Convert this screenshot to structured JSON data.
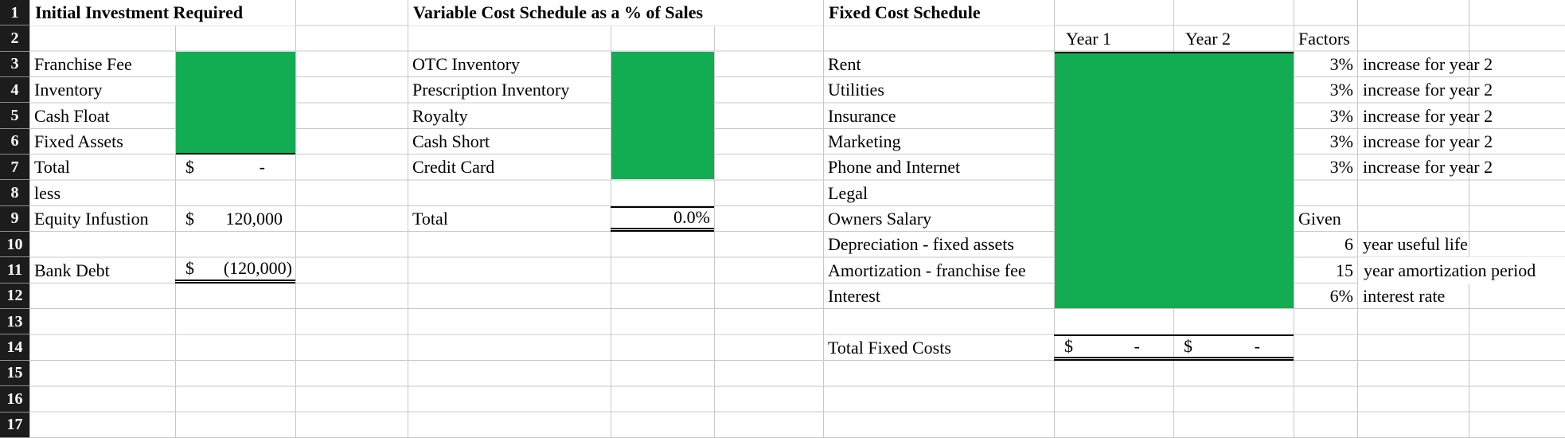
{
  "colors": {
    "fill-green": "#12AC52",
    "row-header-bg": "#1C1C1C",
    "gridline": "#C8C8C8",
    "border-black": "#000000"
  },
  "row_numbers": [
    "1",
    "2",
    "3",
    "4",
    "5",
    "6",
    "7",
    "8",
    "9",
    "10",
    "11",
    "12",
    "13",
    "14",
    "15",
    "16",
    "17"
  ],
  "initial_investment": {
    "title": "Initial Investment Required",
    "labels": {
      "franchise_fee": "Franchise Fee",
      "inventory": "Inventory",
      "cash_float": "Cash Float",
      "fixed_assets": "Fixed Assets",
      "total": "Total",
      "less": "less",
      "equity_infusion": "Equity Infustion",
      "bank_debt": "Bank Debt"
    },
    "values": {
      "total_currency": "$",
      "total_amount": "-",
      "equity_currency": "$",
      "equity_amount": "120,000",
      "bank_debt_currency": "$",
      "bank_debt_amount": "(120,000)"
    }
  },
  "variable_cost": {
    "title": "Variable Cost Schedule as a % of Sales",
    "labels": {
      "otc_inventory": "OTC Inventory",
      "prescription_inventory": "Prescription Inventory",
      "royalty": "Royalty",
      "cash_short": "Cash Short",
      "credit_card": "Credit Card",
      "total": "Total"
    },
    "values": {
      "total_percent": "0.0%"
    }
  },
  "fixed_cost": {
    "title": "Fixed Cost Schedule",
    "column_headers": {
      "year1": "Year 1",
      "year2": "Year 2",
      "factors": "Factors"
    },
    "labels": {
      "rent": "Rent",
      "utilities": "Utilities",
      "insurance": "Insurance",
      "marketing": "Marketing",
      "phone_and_internet": "Phone and Internet",
      "legal": "Legal",
      "owners_salary": "Owners Salary",
      "depreciation": "Depreciation - fixed assets",
      "amortization": "Amortization - franchise fee",
      "interest": "Interest",
      "total_fixed_costs": "Total Fixed Costs"
    },
    "factors": {
      "rent": "3%",
      "utilities": "3%",
      "insurance": "3%",
      "marketing": "3%",
      "phone_and_internet": "3%",
      "owners_salary": "Given",
      "depreciation": "6",
      "amortization": "15",
      "interest": "6%"
    },
    "notes": {
      "rent": "increase for year 2",
      "utilities": "increase for year 2",
      "insurance": "increase for year 2",
      "marketing": "increase for year 2",
      "phone_and_internet": "increase for year 2",
      "depreciation": "year useful life",
      "amortization": "year amortization period",
      "interest": "interest rate"
    },
    "values": {
      "total_year1_currency": "$",
      "total_year1_amount": "-",
      "total_year2_currency": "$",
      "total_year2_amount": "-"
    }
  }
}
